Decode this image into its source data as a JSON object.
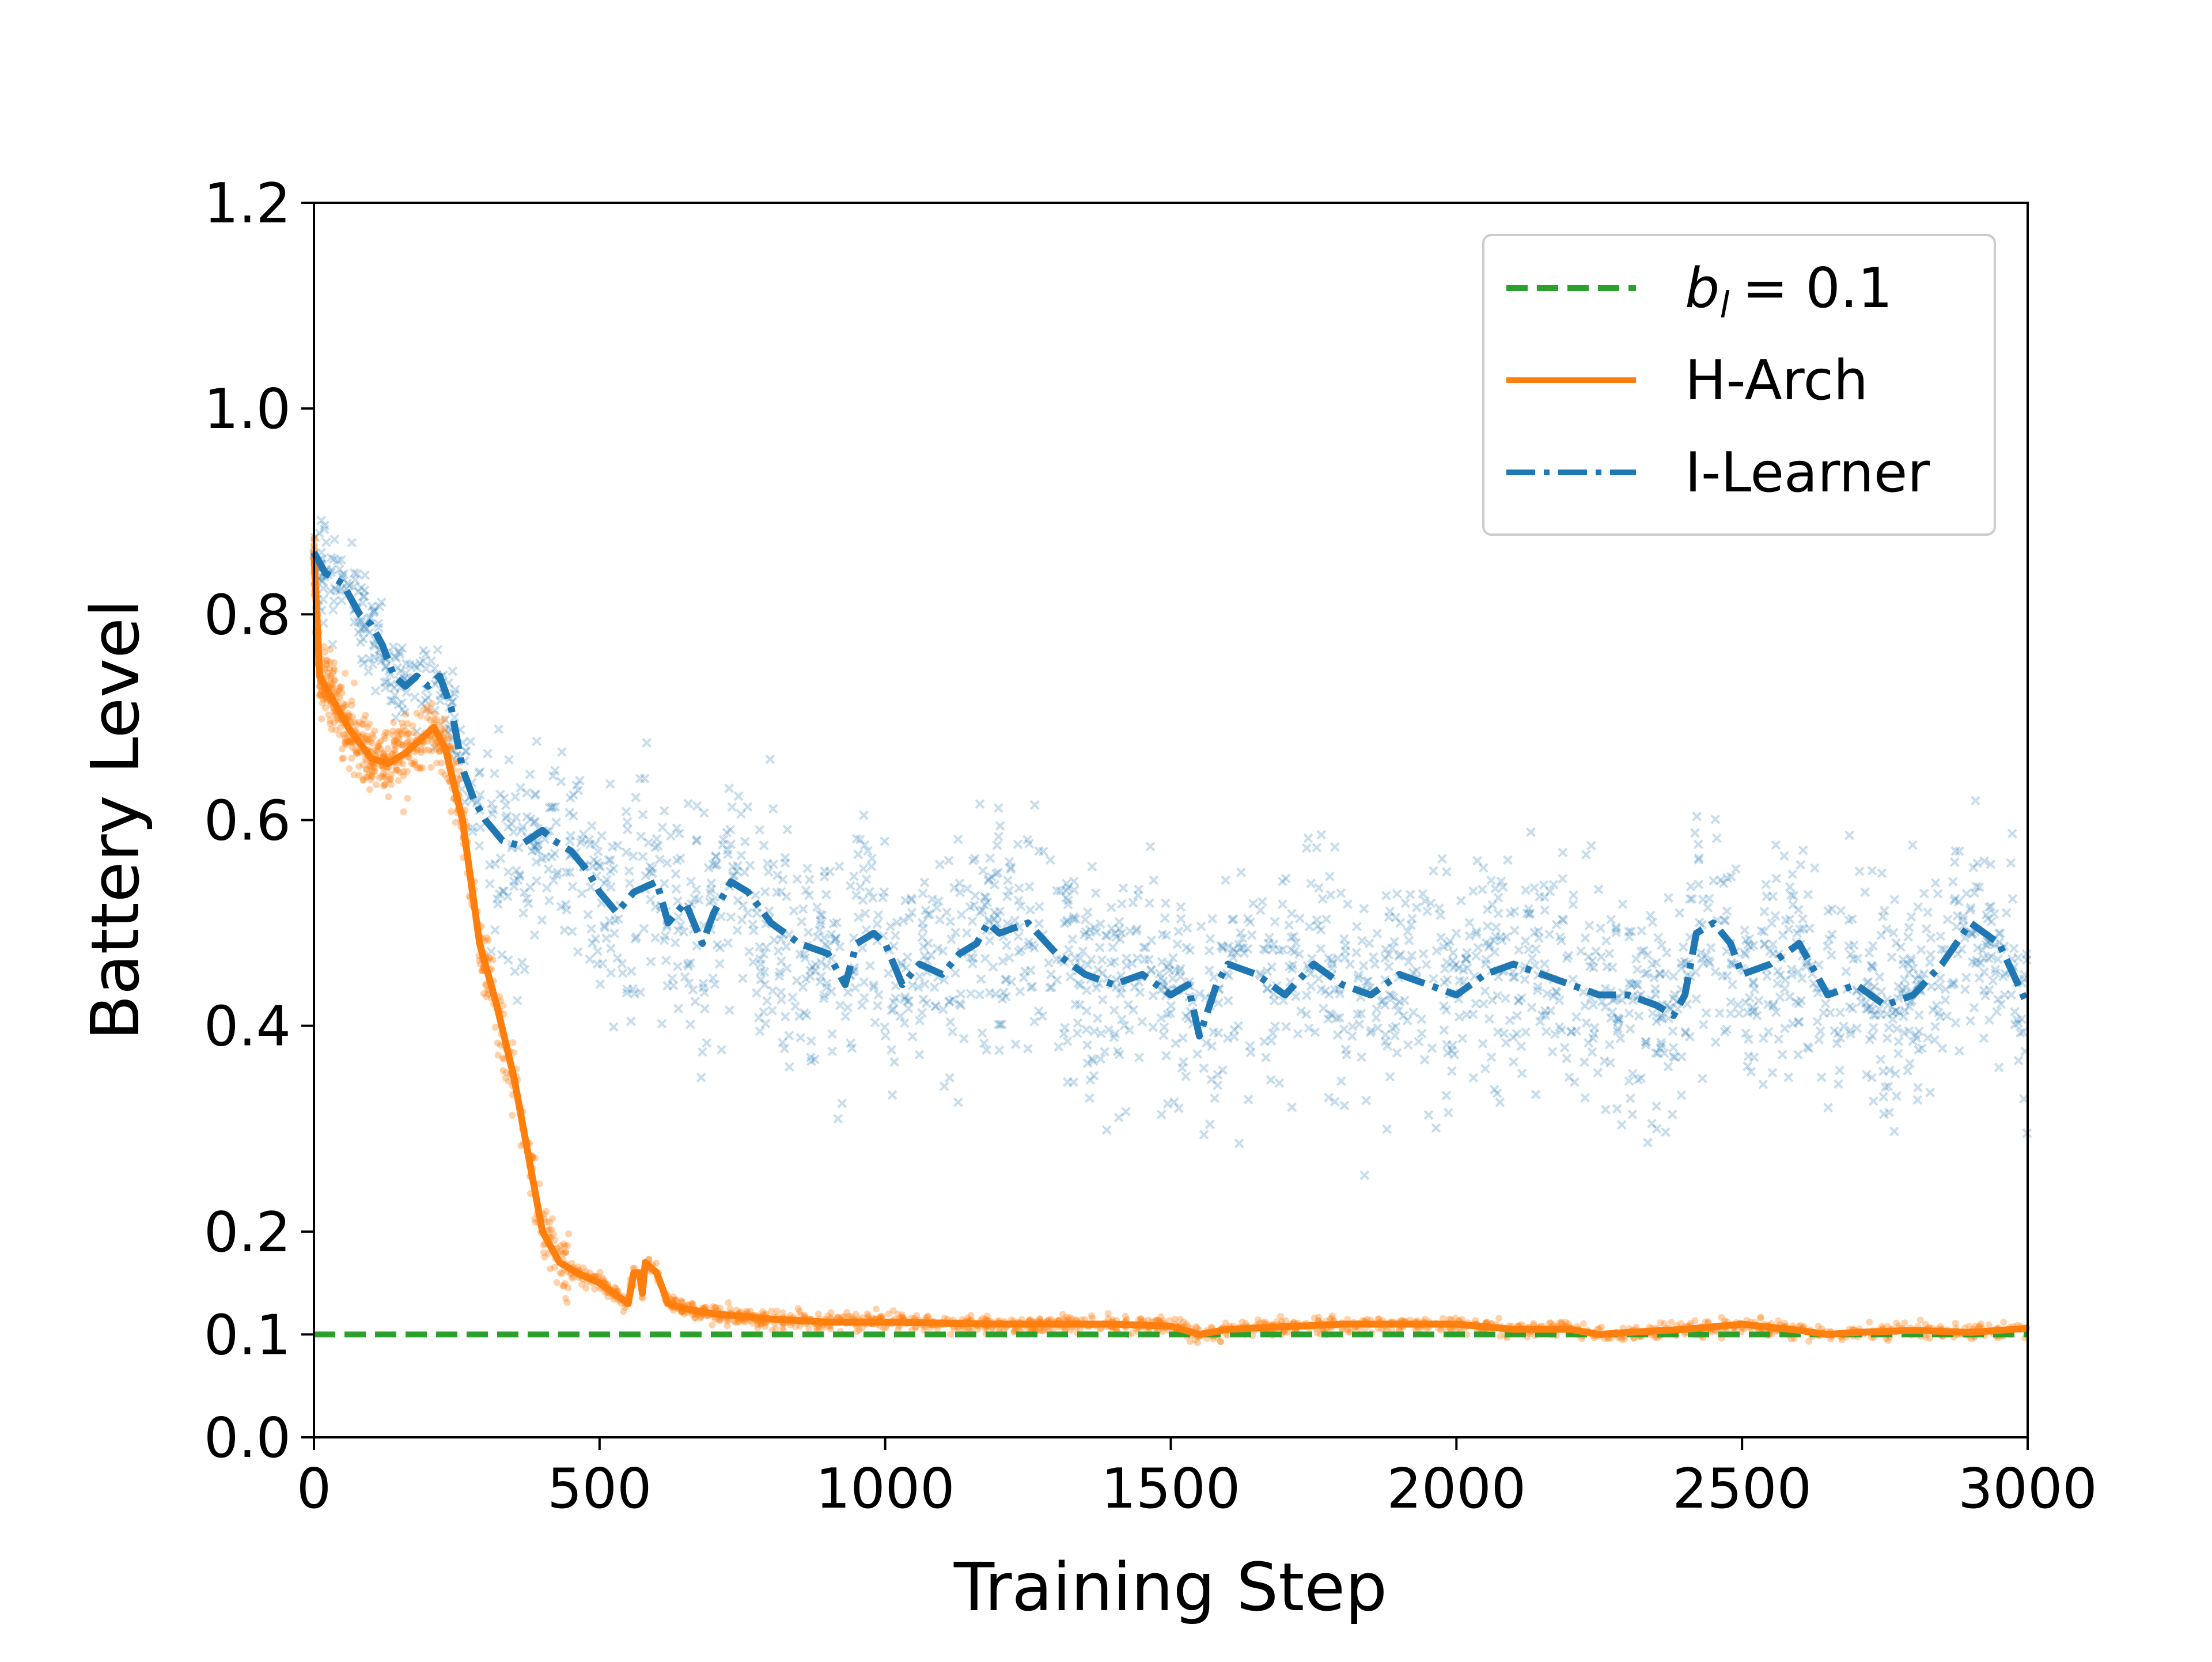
{
  "chart_data": {
    "type": "line",
    "title": "",
    "xlabel": "Training Step",
    "ylabel": "Battery Level",
    "xlim": [
      0,
      3000
    ],
    "ylim": [
      0.0,
      1.2
    ],
    "xticks": [
      0,
      500,
      1000,
      1500,
      2000,
      2500,
      3000
    ],
    "xtick_labels": [
      "0",
      "500",
      "1000",
      "1500",
      "2000",
      "2500",
      "3000"
    ],
    "yticks": [
      0.0,
      0.1,
      0.2,
      0.4,
      0.6,
      0.8,
      1.0,
      1.2
    ],
    "ytick_labels": [
      "0.0",
      "0.1",
      "0.2",
      "0.4",
      "0.6",
      "0.8",
      "1.0",
      "1.2"
    ],
    "grid": false,
    "legend_position": "top-right",
    "legend": {
      "bl_label_b": "b",
      "bl_label_sub": "l",
      "bl_label_rest": "= 0.1",
      "harch_label": "H-Arch",
      "ilearner_label": "I-Learner"
    },
    "colors": {
      "threshold": "#2ca02c",
      "harch": "#ff7f0e",
      "ilearner": "#1f77b4"
    },
    "series": [
      {
        "name": "b_l = 0.1",
        "style": "dashed",
        "x": [
          0,
          3000
        ],
        "values": [
          0.1,
          0.1
        ]
      },
      {
        "name": "H-Arch",
        "style": "solid",
        "x": [
          0,
          10,
          30,
          60,
          100,
          130,
          160,
          190,
          210,
          230,
          260,
          290,
          320,
          350,
          380,
          400,
          430,
          460,
          500,
          550,
          560,
          570,
          575,
          580,
          600,
          620,
          650,
          700,
          800,
          900,
          1000,
          1200,
          1400,
          1500,
          1550,
          1600,
          1800,
          2000,
          2100,
          2200,
          2250,
          2300,
          2400,
          2500,
          2600,
          2650,
          2700,
          2800,
          2900,
          3000
        ],
        "values": [
          0.86,
          0.74,
          0.72,
          0.69,
          0.66,
          0.655,
          0.665,
          0.68,
          0.69,
          0.67,
          0.6,
          0.48,
          0.42,
          0.35,
          0.26,
          0.2,
          0.17,
          0.16,
          0.15,
          0.13,
          0.16,
          0.16,
          0.14,
          0.17,
          0.16,
          0.13,
          0.125,
          0.12,
          0.115,
          0.112,
          0.112,
          0.11,
          0.11,
          0.108,
          0.1,
          0.105,
          0.11,
          0.11,
          0.105,
          0.105,
          0.1,
          0.102,
          0.105,
          0.11,
          0.104,
          0.1,
          0.102,
          0.104,
          0.102,
          0.106
        ]
      },
      {
        "name": "I-Learner",
        "style": "dashdot",
        "x": [
          0,
          20,
          50,
          80,
          100,
          120,
          140,
          160,
          180,
          200,
          220,
          240,
          260,
          280,
          300,
          330,
          360,
          400,
          420,
          450,
          480,
          500,
          530,
          560,
          600,
          620,
          650,
          680,
          700,
          730,
          760,
          800,
          850,
          900,
          930,
          950,
          980,
          1000,
          1030,
          1060,
          1100,
          1130,
          1160,
          1180,
          1200,
          1250,
          1300,
          1350,
          1400,
          1450,
          1500,
          1530,
          1550,
          1580,
          1600,
          1650,
          1700,
          1750,
          1800,
          1850,
          1900,
          1950,
          2000,
          2050,
          2100,
          2150,
          2200,
          2250,
          2300,
          2350,
          2380,
          2400,
          2420,
          2450,
          2480,
          2500,
          2550,
          2600,
          2650,
          2700,
          2750,
          2800,
          2850,
          2900,
          2950,
          3000
        ],
        "values": [
          0.86,
          0.84,
          0.83,
          0.8,
          0.79,
          0.77,
          0.74,
          0.73,
          0.74,
          0.73,
          0.74,
          0.71,
          0.65,
          0.62,
          0.6,
          0.58,
          0.575,
          0.59,
          0.58,
          0.57,
          0.55,
          0.53,
          0.51,
          0.53,
          0.54,
          0.5,
          0.52,
          0.48,
          0.51,
          0.54,
          0.53,
          0.5,
          0.48,
          0.47,
          0.44,
          0.48,
          0.49,
          0.48,
          0.44,
          0.46,
          0.45,
          0.47,
          0.48,
          0.5,
          0.49,
          0.5,
          0.47,
          0.45,
          0.44,
          0.45,
          0.43,
          0.44,
          0.39,
          0.44,
          0.46,
          0.45,
          0.43,
          0.46,
          0.44,
          0.43,
          0.45,
          0.44,
          0.43,
          0.45,
          0.46,
          0.45,
          0.44,
          0.43,
          0.43,
          0.42,
          0.41,
          0.43,
          0.49,
          0.5,
          0.48,
          0.45,
          0.46,
          0.48,
          0.43,
          0.44,
          0.42,
          0.43,
          0.46,
          0.5,
          0.48,
          0.42
        ]
      }
    ]
  }
}
